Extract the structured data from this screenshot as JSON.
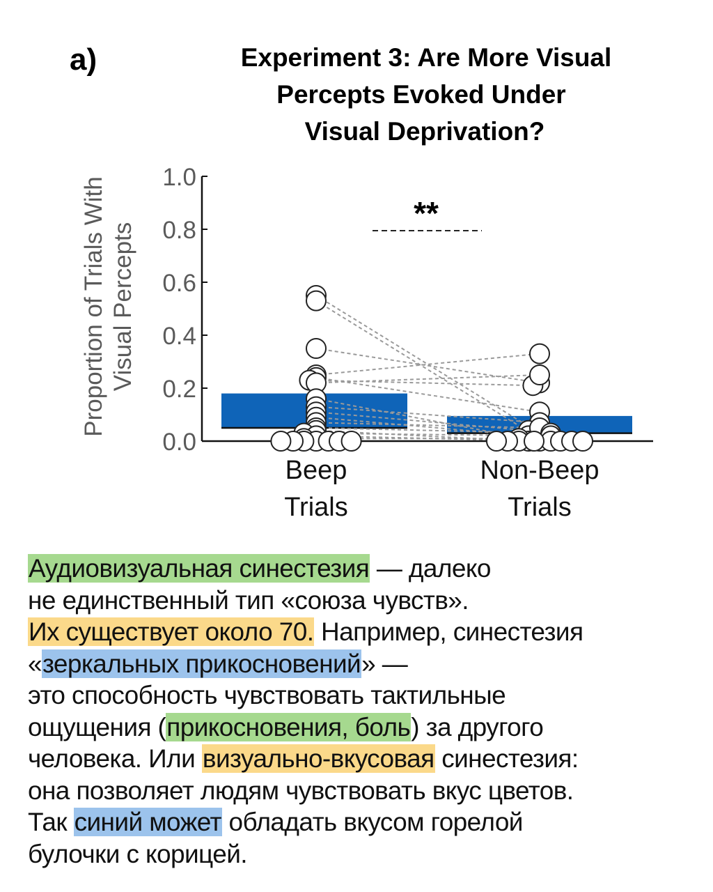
{
  "chart_data": {
    "type": "scatter",
    "panel_label": "a)",
    "title_lines": [
      "Experiment 3: Are More Visual",
      "Percepts Evoked Under",
      "Visual Deprivation?"
    ],
    "ylabel_lines": [
      "Proportion of Trials With",
      "Visual Percepts"
    ],
    "ylim": [
      0,
      1.0
    ],
    "yticks": [
      "0.0",
      "0.2",
      "0.4",
      "0.6",
      "0.8",
      "1.0"
    ],
    "categories": [
      "Beep\nTrials",
      "Non-Beep\nTrials"
    ],
    "category_label_lines": [
      [
        "Beep",
        "Trials"
      ],
      [
        "Non-Beep",
        "Trials"
      ]
    ],
    "bars": [
      {
        "category": "Beep Trials",
        "mean": 0.05,
        "upper": 0.18,
        "lower": 0.05,
        "color": "#0f64b8"
      },
      {
        "category": "Non-Beep Trials",
        "mean": 0.03,
        "upper": 0.095,
        "lower": 0.03,
        "color": "#0f64b8"
      }
    ],
    "significance": "**",
    "paired_points": [
      {
        "beep": 0.55,
        "nonbeep": 0.03
      },
      {
        "beep": 0.53,
        "nonbeep": 0.01
      },
      {
        "beep": 0.35,
        "nonbeep": 0.22
      },
      {
        "beep": 0.25,
        "nonbeep": 0.33
      },
      {
        "beep": 0.24,
        "nonbeep": 0.11
      },
      {
        "beep": 0.23,
        "nonbeep": 0.21
      },
      {
        "beep": 0.22,
        "nonbeep": 0.25
      },
      {
        "beep": 0.16,
        "nonbeep": 0.0
      },
      {
        "beep": 0.13,
        "nonbeep": 0.07
      },
      {
        "beep": 0.11,
        "nonbeep": 0.04
      },
      {
        "beep": 0.09,
        "nonbeep": 0.02
      },
      {
        "beep": 0.07,
        "nonbeep": 0.05
      },
      {
        "beep": 0.05,
        "nonbeep": 0.03
      },
      {
        "beep": 0.04,
        "nonbeep": 0.0
      },
      {
        "beep": 0.03,
        "nonbeep": 0.02
      },
      {
        "beep": 0.02,
        "nonbeep": 0.0
      },
      {
        "beep": 0.01,
        "nonbeep": 0.01
      },
      {
        "beep": 0.0,
        "nonbeep": 0.0
      },
      {
        "beep": 0.0,
        "nonbeep": 0.0
      },
      {
        "beep": 0.0,
        "nonbeep": 0.0
      },
      {
        "beep": 0.0,
        "nonbeep": 0.0
      },
      {
        "beep": 0.0,
        "nonbeep": 0.0
      },
      {
        "beep": 0.0,
        "nonbeep": 0.0
      },
      {
        "beep": 0.0,
        "nonbeep": 0.0
      }
    ],
    "marker_color": "#ffffff",
    "marker_edge": "#222222",
    "line_color": "#9a9a9a"
  },
  "caption": {
    "lines": [
      [
        {
          "text": "Аудиовизуальная синестезия",
          "hl": "green"
        },
        {
          "text": " — далеко"
        }
      ],
      [
        {
          "text": "не единственный тип «союза чувств»."
        }
      ],
      [
        {
          "text": "Их существует около 70.",
          "hl": "yellow"
        },
        {
          "text": " Например, синестезия"
        }
      ],
      [
        {
          "text": "«"
        },
        {
          "text": "зеркальных прикосновений",
          "hl": "blue"
        },
        {
          "text": "» —"
        }
      ],
      [
        {
          "text": "это способность чувствовать тактильные"
        }
      ],
      [
        {
          "text": "ощущения ("
        },
        {
          "text": "прикосновения, боль",
          "hl": "green"
        },
        {
          "text": ") за другого"
        }
      ],
      [
        {
          "text": "человека. Или "
        },
        {
          "text": "визуально-вкусовая",
          "hl": "yellow"
        },
        {
          "text": " синестезия:"
        }
      ],
      [
        {
          "text": "она позволяет людям чувствовать вкус цветов."
        }
      ],
      [
        {
          "text": "Так "
        },
        {
          "text": "синий может",
          "hl": "blue"
        },
        {
          "text": " обладать вкусом горелой"
        }
      ],
      [
        {
          "text": "булочки с корицей."
        }
      ]
    ]
  }
}
